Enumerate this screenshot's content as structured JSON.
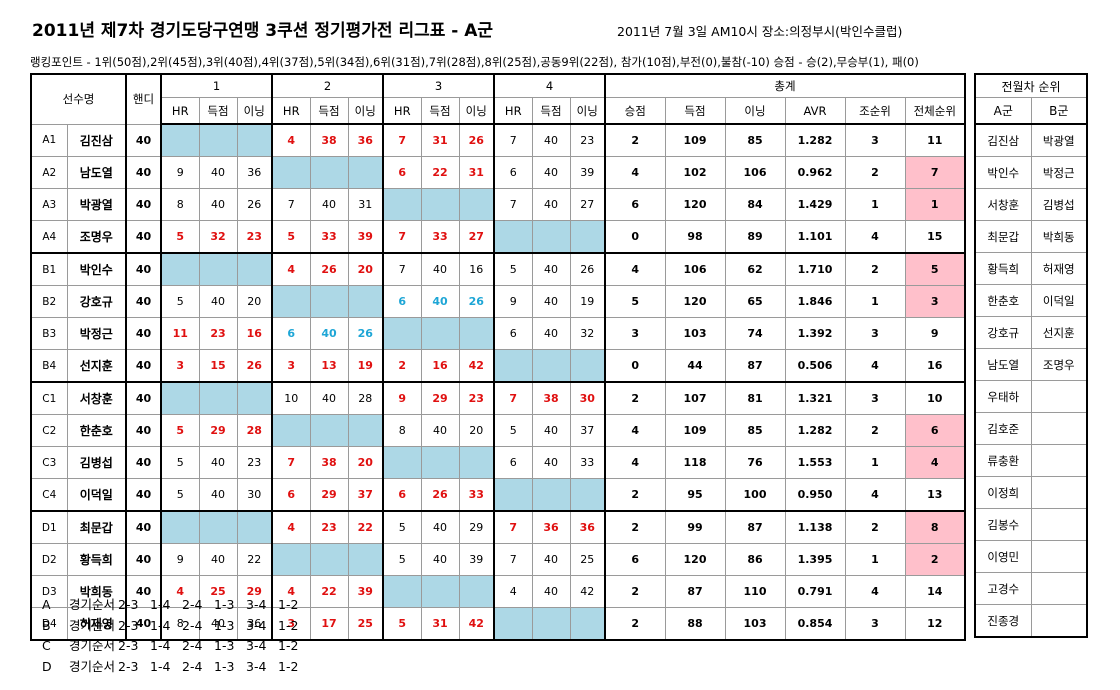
{
  "title": "2011년 제7차 경기도당구연맹 3쿠션 정기평가전 리그표 - A군",
  "meta": "2011년 7월 3일 AM10시   장소:의정부시(박인수클럽)",
  "rank_note": "랭킹포인트 - 1위(50점),2위(45점),3위(40점),4위(37점),5위(34점),6위(31점),7위(28점),8위(25점),공동9위(22점), 참가(10점),부전(0),불참(-10)   승점 - 승(2),무승부(1), 패(0)",
  "headers": {
    "player": "선수명",
    "handicap": "핸디",
    "rounds": [
      "1",
      "2",
      "3",
      "4"
    ],
    "sub": [
      "HR",
      "득점",
      "이닝"
    ],
    "total": "총계",
    "total_cols": [
      "승점",
      "득점",
      "이닝",
      "AVR",
      "조순위",
      "전체순위"
    ]
  },
  "highlight_colors": {
    "blank_cell": "#add8e6",
    "rank_highlight": "#ffc0cb",
    "win_text": "#e01010",
    "draw_text": "#1ea6d6"
  },
  "rows": [
    {
      "code": "A1",
      "name": "김진삼",
      "hd": "40",
      "rounds": [
        null,
        {
          "hr": "4",
          "pts": "38",
          "inn": "36",
          "c": "red"
        },
        {
          "hr": "7",
          "pts": "31",
          "inn": "26",
          "c": "red"
        },
        {
          "hr": "7",
          "pts": "40",
          "inn": "23",
          "c": "dark"
        }
      ],
      "total": {
        "sp": "2",
        "pts": "109",
        "inn": "85",
        "avr": "1.282",
        "grp": "3",
        "all": "11",
        "pink": false
      }
    },
    {
      "code": "A2",
      "name": "남도열",
      "hd": "40",
      "rounds": [
        {
          "hr": "9",
          "pts": "40",
          "inn": "36",
          "c": "dark"
        },
        null,
        {
          "hr": "6",
          "pts": "22",
          "inn": "31",
          "c": "red"
        },
        {
          "hr": "6",
          "pts": "40",
          "inn": "39",
          "c": "dark"
        }
      ],
      "total": {
        "sp": "4",
        "pts": "102",
        "inn": "106",
        "avr": "0.962",
        "grp": "2",
        "all": "7",
        "pink": true
      }
    },
    {
      "code": "A3",
      "name": "박광열",
      "hd": "40",
      "rounds": [
        {
          "hr": "8",
          "pts": "40",
          "inn": "26",
          "c": "dark"
        },
        {
          "hr": "7",
          "pts": "40",
          "inn": "31",
          "c": "dark"
        },
        null,
        {
          "hr": "7",
          "pts": "40",
          "inn": "27",
          "c": "dark"
        }
      ],
      "total": {
        "sp": "6",
        "pts": "120",
        "inn": "84",
        "avr": "1.429",
        "grp": "1",
        "all": "1",
        "pink": true
      }
    },
    {
      "code": "A4",
      "name": "조명우",
      "hd": "40",
      "rounds": [
        {
          "hr": "5",
          "pts": "32",
          "inn": "23",
          "c": "red"
        },
        {
          "hr": "5",
          "pts": "33",
          "inn": "39",
          "c": "red"
        },
        {
          "hr": "7",
          "pts": "33",
          "inn": "27",
          "c": "red"
        },
        null
      ],
      "total": {
        "sp": "0",
        "pts": "98",
        "inn": "89",
        "avr": "1.101",
        "grp": "4",
        "all": "15",
        "pink": false
      }
    },
    {
      "code": "B1",
      "name": "박인수",
      "hd": "40",
      "rounds": [
        null,
        {
          "hr": "4",
          "pts": "26",
          "inn": "20",
          "c": "red"
        },
        {
          "hr": "7",
          "pts": "40",
          "inn": "16",
          "c": "dark"
        },
        {
          "hr": "5",
          "pts": "40",
          "inn": "26",
          "c": "dark"
        }
      ],
      "total": {
        "sp": "4",
        "pts": "106",
        "inn": "62",
        "avr": "1.710",
        "grp": "2",
        "all": "5",
        "pink": true
      }
    },
    {
      "code": "B2",
      "name": "강호규",
      "hd": "40",
      "rounds": [
        {
          "hr": "5",
          "pts": "40",
          "inn": "20",
          "c": "dark"
        },
        null,
        {
          "hr": "6",
          "pts": "40",
          "inn": "26",
          "c": "cyan"
        },
        {
          "hr": "9",
          "pts": "40",
          "inn": "19",
          "c": "dark"
        }
      ],
      "total": {
        "sp": "5",
        "pts": "120",
        "inn": "65",
        "avr": "1.846",
        "grp": "1",
        "all": "3",
        "pink": true
      }
    },
    {
      "code": "B3",
      "name": "박정근",
      "hd": "40",
      "rounds": [
        {
          "hr": "11",
          "pts": "23",
          "inn": "16",
          "c": "red"
        },
        {
          "hr": "6",
          "pts": "40",
          "inn": "26",
          "c": "cyan"
        },
        null,
        {
          "hr": "6",
          "pts": "40",
          "inn": "32",
          "c": "dark"
        }
      ],
      "total": {
        "sp": "3",
        "pts": "103",
        "inn": "74",
        "avr": "1.392",
        "grp": "3",
        "all": "9",
        "pink": false
      }
    },
    {
      "code": "B4",
      "name": "선지훈",
      "hd": "40",
      "rounds": [
        {
          "hr": "3",
          "pts": "15",
          "inn": "26",
          "c": "red"
        },
        {
          "hr": "3",
          "pts": "13",
          "inn": "19",
          "c": "red"
        },
        {
          "hr": "2",
          "pts": "16",
          "inn": "42",
          "c": "red"
        },
        null
      ],
      "total": {
        "sp": "0",
        "pts": "44",
        "inn": "87",
        "avr": "0.506",
        "grp": "4",
        "all": "16",
        "pink": false
      }
    },
    {
      "code": "C1",
      "name": "서창훈",
      "hd": "40",
      "rounds": [
        null,
        {
          "hr": "10",
          "pts": "40",
          "inn": "28",
          "c": "dark"
        },
        {
          "hr": "9",
          "pts": "29",
          "inn": "23",
          "c": "red"
        },
        {
          "hr": "7",
          "pts": "38",
          "inn": "30",
          "c": "red"
        }
      ],
      "total": {
        "sp": "2",
        "pts": "107",
        "inn": "81",
        "avr": "1.321",
        "grp": "3",
        "all": "10",
        "pink": false
      }
    },
    {
      "code": "C2",
      "name": "한춘호",
      "hd": "40",
      "rounds": [
        {
          "hr": "5",
          "pts": "29",
          "inn": "28",
          "c": "red"
        },
        null,
        {
          "hr": "8",
          "pts": "40",
          "inn": "20",
          "c": "dark"
        },
        {
          "hr": "5",
          "pts": "40",
          "inn": "37",
          "c": "dark"
        }
      ],
      "total": {
        "sp": "4",
        "pts": "109",
        "inn": "85",
        "avr": "1.282",
        "grp": "2",
        "all": "6",
        "pink": true
      }
    },
    {
      "code": "C3",
      "name": "김병섭",
      "hd": "40",
      "rounds": [
        {
          "hr": "5",
          "pts": "40",
          "inn": "23",
          "c": "dark"
        },
        {
          "hr": "7",
          "pts": "38",
          "inn": "20",
          "c": "red"
        },
        null,
        {
          "hr": "6",
          "pts": "40",
          "inn": "33",
          "c": "dark"
        }
      ],
      "total": {
        "sp": "4",
        "pts": "118",
        "inn": "76",
        "avr": "1.553",
        "grp": "1",
        "all": "4",
        "pink": true
      }
    },
    {
      "code": "C4",
      "name": "이덕일",
      "hd": "40",
      "rounds": [
        {
          "hr": "5",
          "pts": "40",
          "inn": "30",
          "c": "dark"
        },
        {
          "hr": "6",
          "pts": "29",
          "inn": "37",
          "c": "red"
        },
        {
          "hr": "6",
          "pts": "26",
          "inn": "33",
          "c": "red"
        },
        null
      ],
      "total": {
        "sp": "2",
        "pts": "95",
        "inn": "100",
        "avr": "0.950",
        "grp": "4",
        "all": "13",
        "pink": false
      }
    },
    {
      "code": "D1",
      "name": "최문갑",
      "hd": "40",
      "rounds": [
        null,
        {
          "hr": "4",
          "pts": "23",
          "inn": "22",
          "c": "red"
        },
        {
          "hr": "5",
          "pts": "40",
          "inn": "29",
          "c": "dark"
        },
        {
          "hr": "7",
          "pts": "36",
          "inn": "36",
          "c": "red"
        }
      ],
      "total": {
        "sp": "2",
        "pts": "99",
        "inn": "87",
        "avr": "1.138",
        "grp": "2",
        "all": "8",
        "pink": true
      }
    },
    {
      "code": "D2",
      "name": "황득희",
      "hd": "40",
      "rounds": [
        {
          "hr": "9",
          "pts": "40",
          "inn": "22",
          "c": "dark"
        },
        null,
        {
          "hr": "5",
          "pts": "40",
          "inn": "39",
          "c": "dark"
        },
        {
          "hr": "7",
          "pts": "40",
          "inn": "25",
          "c": "dark"
        }
      ],
      "total": {
        "sp": "6",
        "pts": "120",
        "inn": "86",
        "avr": "1.395",
        "grp": "1",
        "all": "2",
        "pink": true
      }
    },
    {
      "code": "D3",
      "name": "박희동",
      "hd": "40",
      "rounds": [
        {
          "hr": "4",
          "pts": "25",
          "inn": "29",
          "c": "red"
        },
        {
          "hr": "4",
          "pts": "22",
          "inn": "39",
          "c": "red"
        },
        null,
        {
          "hr": "4",
          "pts": "40",
          "inn": "42",
          "c": "dark"
        }
      ],
      "total": {
        "sp": "2",
        "pts": "87",
        "inn": "110",
        "avr": "0.791",
        "grp": "4",
        "all": "14",
        "pink": false
      }
    },
    {
      "code": "D4",
      "name": "허재영",
      "hd": "40",
      "rounds": [
        {
          "hr": "8",
          "pts": "40",
          "inn": "36",
          "c": "dark"
        },
        {
          "hr": "3",
          "pts": "17",
          "inn": "25",
          "c": "red"
        },
        {
          "hr": "5",
          "pts": "31",
          "inn": "42",
          "c": "red"
        },
        null
      ],
      "total": {
        "sp": "2",
        "pts": "88",
        "inn": "103",
        "avr": "0.854",
        "grp": "3",
        "all": "12",
        "pink": false
      }
    }
  ],
  "prev": {
    "title": "전월차 순위",
    "a_label": "A군",
    "b_label": "B군",
    "a": [
      "김진삼",
      "박인수",
      "서창훈",
      "최문갑",
      "황득희",
      "한춘호",
      "강호규",
      "남도열",
      "우태하",
      "김호준",
      "류충환",
      "이정희",
      "김봉수",
      "이영민",
      "고경수",
      "진종경"
    ],
    "b": [
      "박광열",
      "박정근",
      "김병섭",
      "박희동",
      "허재영",
      "이덕일",
      "선지훈",
      "조명우",
      "",
      "",
      "",
      "",
      "",
      "",
      "",
      ""
    ]
  },
  "orders": {
    "label": "경기순서",
    "groups": [
      "A",
      "B",
      "C",
      "D"
    ],
    "matches": [
      "2-3",
      "1-4",
      "2-4",
      "1-3",
      "3-4",
      "1-2"
    ]
  }
}
